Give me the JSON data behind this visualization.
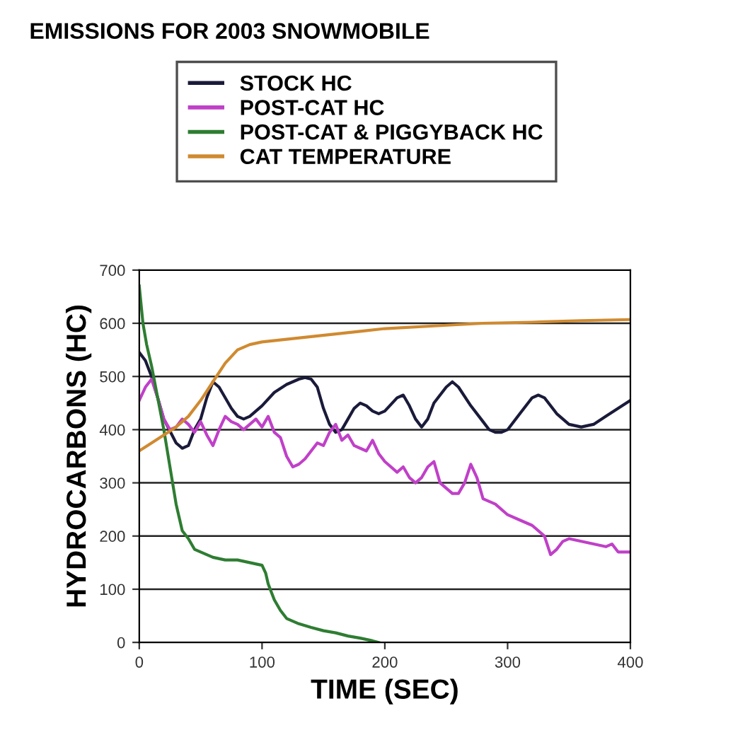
{
  "chart_data": {
    "type": "line",
    "title": "EMISSIONS FOR 2003 SNOWMOBILE",
    "xlabel": "TIME (SEC)",
    "ylabel": "HYDROCARBONS (HC)",
    "xlim": [
      0,
      400
    ],
    "xticks": [
      0,
      100,
      200,
      300,
      400
    ],
    "ylim": [
      0,
      700
    ],
    "yticks": [
      0,
      100,
      200,
      300,
      400,
      500,
      600,
      700
    ],
    "grid": "y",
    "legend": "top",
    "line_style": "solid",
    "marker": "none",
    "series": [
      {
        "name": "STOCK HC",
        "color": "#1a1a3a",
        "x": [
          0,
          5,
          10,
          20,
          30,
          35,
          40,
          45,
          50,
          55,
          60,
          65,
          70,
          75,
          80,
          85,
          90,
          100,
          110,
          120,
          130,
          135,
          140,
          145,
          150,
          155,
          160,
          165,
          170,
          175,
          180,
          185,
          190,
          195,
          200,
          210,
          215,
          220,
          225,
          230,
          235,
          240,
          250,
          255,
          260,
          270,
          280,
          285,
          290,
          295,
          300,
          310,
          320,
          325,
          330,
          340,
          350,
          360,
          370,
          380,
          390,
          400
        ],
        "values": [
          545,
          530,
          500,
          420,
          375,
          365,
          370,
          400,
          420,
          460,
          490,
          480,
          460,
          440,
          425,
          420,
          425,
          445,
          470,
          485,
          495,
          498,
          495,
          480,
          440,
          410,
          395,
          400,
          420,
          440,
          450,
          445,
          435,
          430,
          435,
          460,
          465,
          445,
          420,
          405,
          420,
          450,
          480,
          490,
          480,
          445,
          415,
          400,
          395,
          395,
          400,
          430,
          460,
          465,
          460,
          430,
          410,
          405,
          410,
          425,
          440,
          455
        ]
      },
      {
        "name": "POST-CAT HC",
        "color": "#c040c8",
        "x": [
          0,
          5,
          10,
          15,
          20,
          25,
          30,
          35,
          40,
          45,
          50,
          55,
          60,
          65,
          70,
          75,
          80,
          85,
          90,
          95,
          100,
          105,
          110,
          115,
          120,
          125,
          130,
          135,
          140,
          145,
          150,
          155,
          160,
          165,
          170,
          175,
          180,
          185,
          190,
          195,
          200,
          210,
          215,
          220,
          225,
          230,
          235,
          240,
          245,
          250,
          255,
          260,
          265,
          270,
          275,
          280,
          290,
          300,
          310,
          320,
          330,
          335,
          340,
          345,
          350,
          360,
          370,
          380,
          385,
          390,
          400
        ],
        "values": [
          455,
          480,
          495,
          460,
          420,
          400,
          405,
          420,
          410,
          395,
          415,
          390,
          370,
          400,
          425,
          415,
          410,
          400,
          410,
          420,
          405,
          425,
          395,
          385,
          350,
          330,
          335,
          345,
          360,
          375,
          370,
          395,
          410,
          380,
          390,
          370,
          365,
          360,
          380,
          355,
          340,
          320,
          330,
          310,
          300,
          310,
          330,
          340,
          300,
          290,
          280,
          280,
          300,
          335,
          310,
          270,
          260,
          240,
          230,
          220,
          200,
          165,
          175,
          190,
          195,
          190,
          185,
          180,
          185,
          170,
          170
        ]
      },
      {
        "name": "POST-CAT & PIGGYBACK HC",
        "color": "#2e7d32",
        "x": [
          0,
          3,
          6,
          10,
          15,
          20,
          25,
          30,
          35,
          40,
          45,
          50,
          60,
          70,
          80,
          90,
          100,
          103,
          105,
          110,
          115,
          120,
          130,
          140,
          150,
          160,
          170,
          180,
          190,
          195
        ],
        "values": [
          670,
          600,
          560,
          520,
          460,
          400,
          330,
          260,
          210,
          195,
          175,
          170,
          160,
          155,
          155,
          150,
          145,
          130,
          110,
          80,
          60,
          45,
          35,
          28,
          22,
          18,
          12,
          8,
          3,
          0
        ]
      },
      {
        "name": "CAT TEMPERATURE",
        "color": "#d08a30",
        "x": [
          0,
          10,
          20,
          30,
          40,
          50,
          60,
          70,
          80,
          90,
          100,
          120,
          140,
          160,
          180,
          200,
          240,
          280,
          320,
          360,
          400
        ],
        "values": [
          360,
          375,
          390,
          405,
          425,
          455,
          490,
          525,
          550,
          560,
          565,
          570,
          575,
          580,
          585,
          590,
          595,
          600,
          602,
          605,
          607
        ]
      }
    ]
  }
}
